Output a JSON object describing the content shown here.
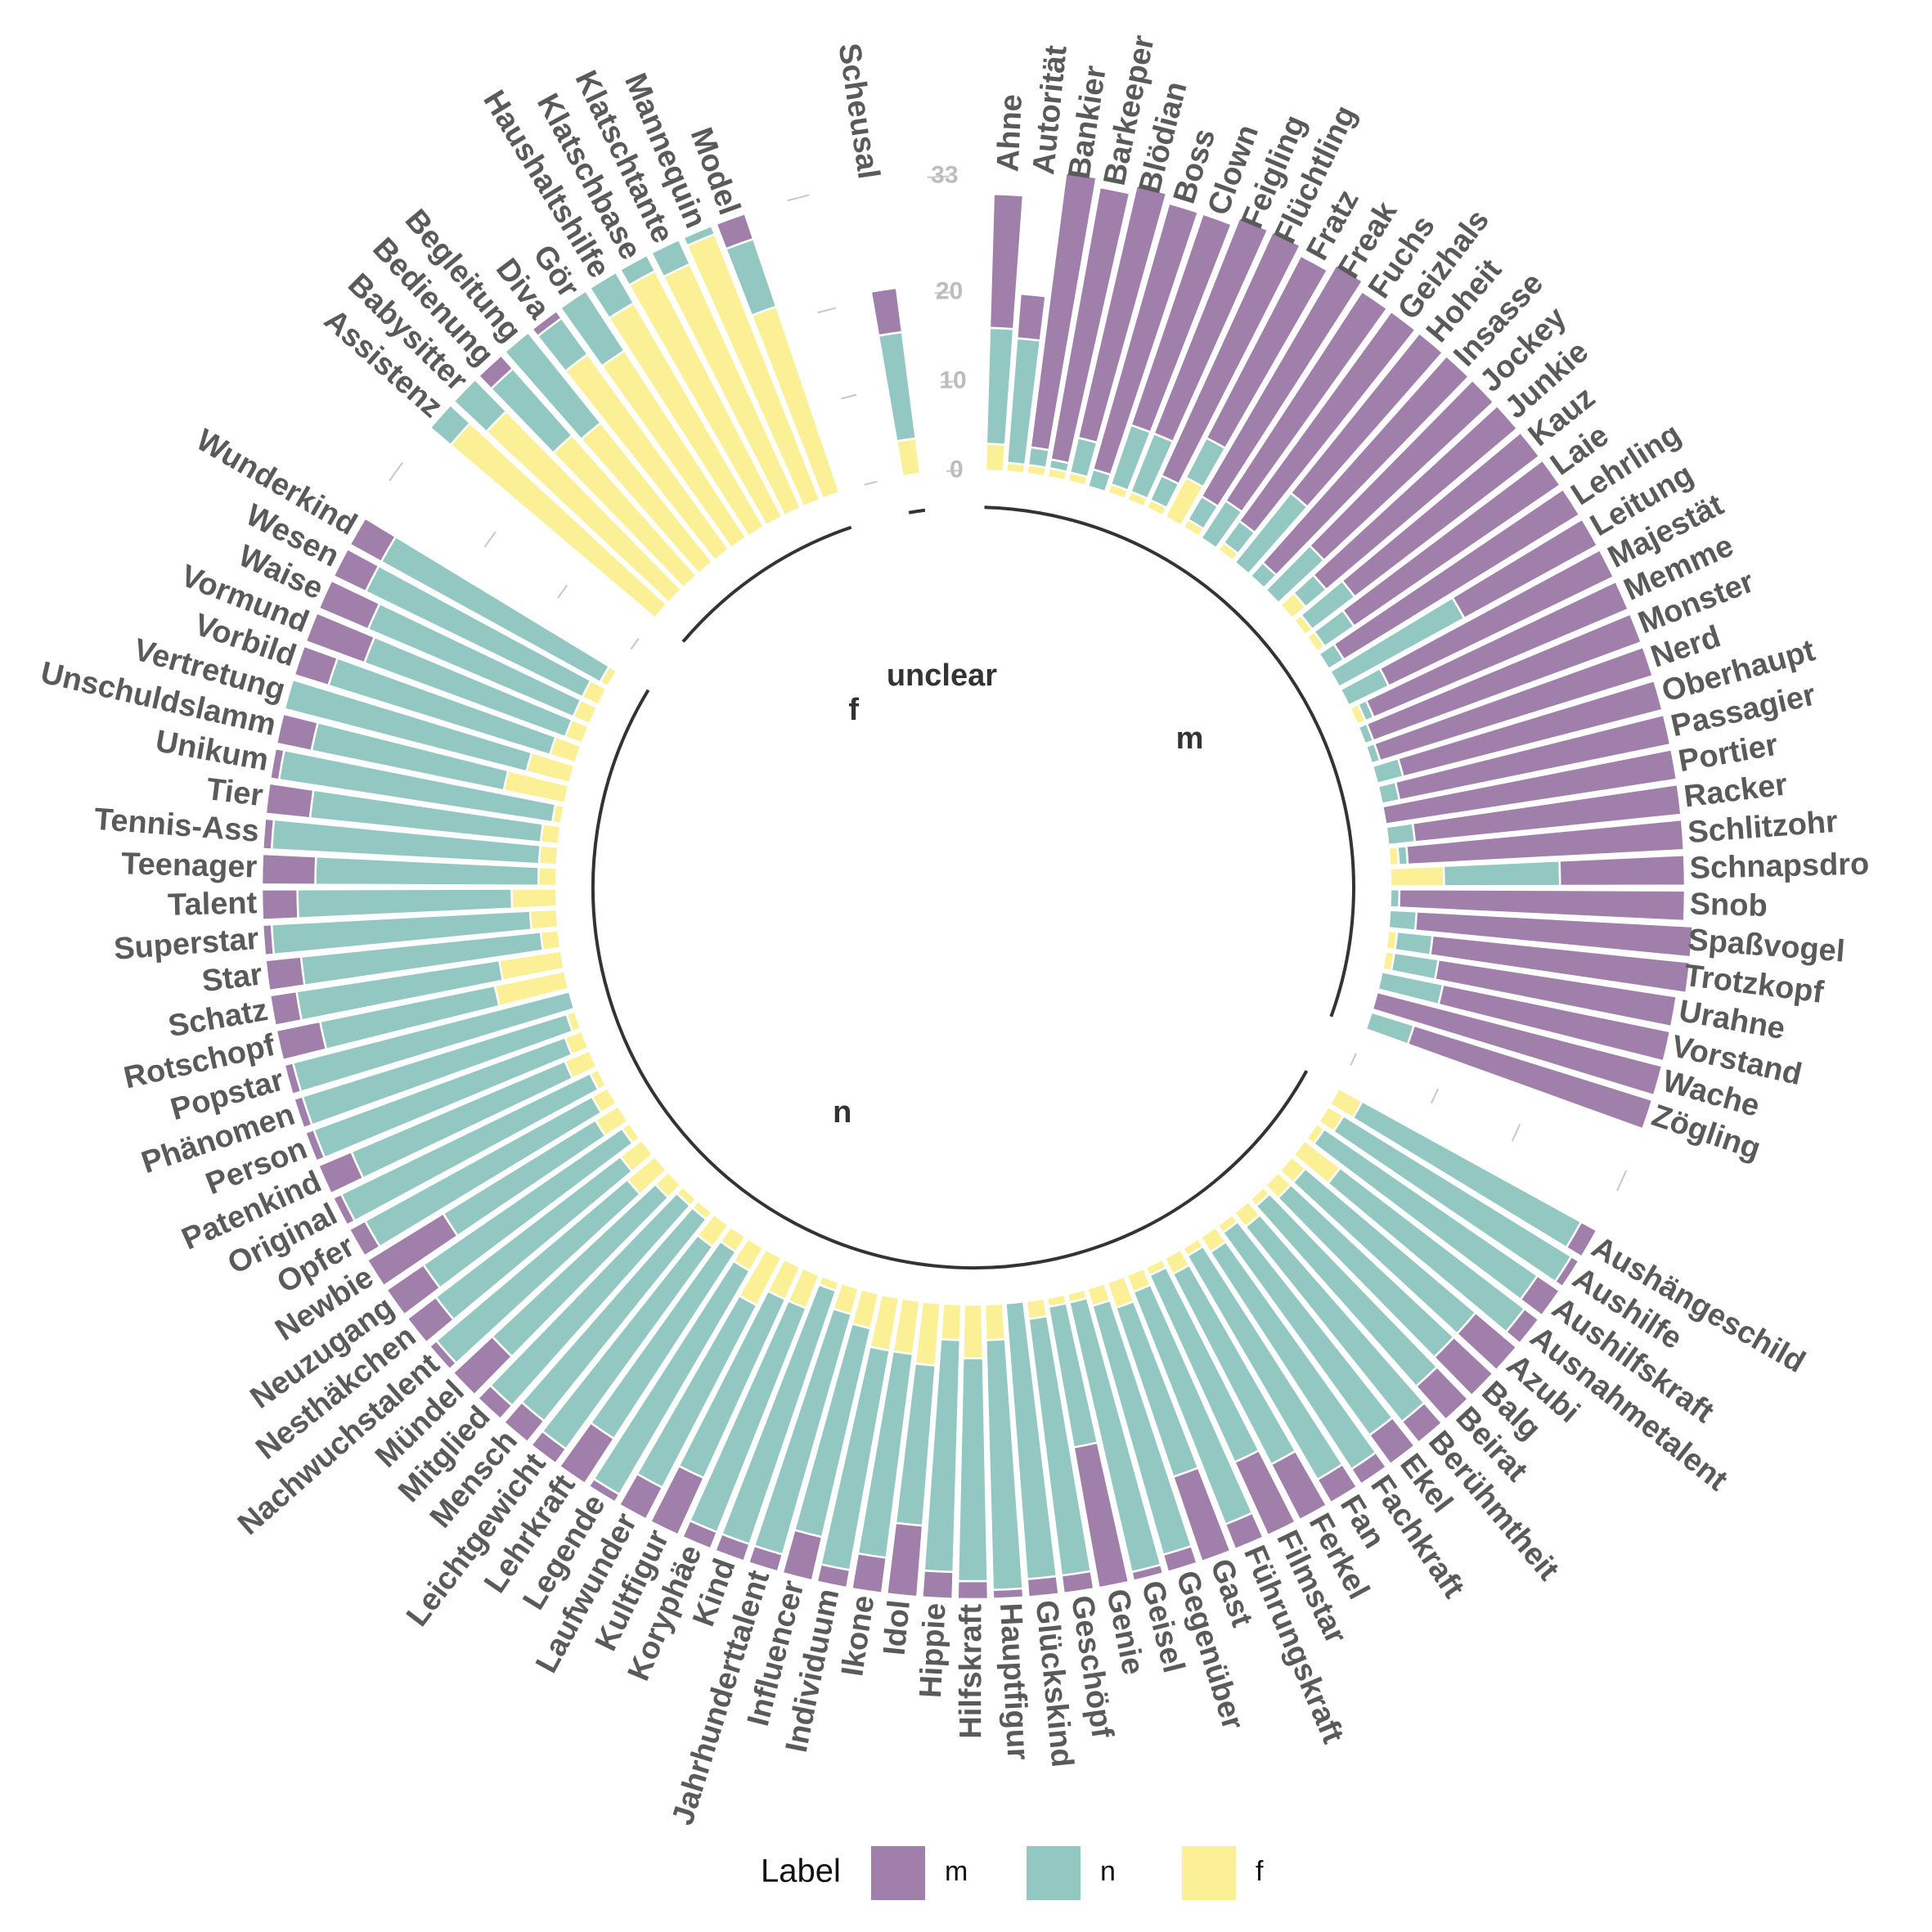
{
  "chart_data": {
    "type": "bar",
    "polar": true,
    "stacked": true,
    "colors": {
      "m": "#a07fab",
      "n": "#93c7c2",
      "f": "#fbf096"
    },
    "axis_ticks": [
      0,
      10,
      20,
      33
    ],
    "ylim": [
      0,
      33
    ],
    "legend": {
      "title": "Label",
      "position": "bottom",
      "keys": [
        "m",
        "n",
        "f"
      ]
    },
    "groups": [
      {
        "name": "m",
        "words": [
          [
            "Ahne",
            15,
            13,
            3
          ],
          [
            "Autorität",
            5,
            14,
            1
          ],
          [
            "Bankier",
            31,
            2,
            1
          ],
          [
            "Barkeeper",
            31,
            1,
            1
          ],
          [
            "Blödian",
            29,
            4,
            1
          ],
          [
            "Boss",
            31,
            2,
            0
          ],
          [
            "Clown",
            25,
            7,
            1
          ],
          [
            "Feigling",
            26,
            7,
            1
          ],
          [
            "Flüchtling",
            30,
            3,
            1
          ],
          [
            "Fratz",
            23,
            5,
            5
          ],
          [
            "Freak",
            30,
            3,
            1
          ],
          [
            "Fuchs",
            28,
            5,
            0
          ],
          [
            "Geizhals",
            29,
            3,
            1
          ],
          [
            "Hoheit",
            23,
            10,
            0
          ],
          [
            "Insasse",
            31,
            2,
            0
          ],
          [
            "Jockey",
            26,
            7,
            0
          ],
          [
            "Junkie",
            28,
            3,
            2
          ],
          [
            "Kauz",
            26,
            6,
            1
          ],
          [
            "Laie",
            28,
            4,
            1
          ],
          [
            "Lehrling",
            31,
            2,
            0
          ],
          [
            "Leitung",
            17,
            16,
            0
          ],
          [
            "Majestät",
            28,
            5,
            0
          ],
          [
            "Memme",
            31,
            1,
            1
          ],
          [
            "Monster",
            32,
            1,
            0
          ],
          [
            "Nerd",
            32,
            1,
            0
          ],
          [
            "Oberhaupt",
            30,
            3,
            0
          ],
          [
            "Passagier",
            31,
            2,
            0
          ],
          [
            "Portier",
            33,
            0,
            0
          ],
          [
            "Racker",
            30,
            3,
            0
          ],
          [
            "Schlitzohr",
            31,
            1,
            1
          ],
          [
            "Schnapsdro",
            14,
            13,
            6
          ],
          [
            "Snob",
            32,
            1,
            0
          ],
          [
            "Spaßvogel",
            31,
            3,
            0
          ],
          [
            "Trotzkopf",
            29,
            4,
            1
          ],
          [
            "Urahne",
            27,
            5,
            1
          ],
          [
            "Vorstand",
            26,
            7,
            0
          ],
          [
            "Wache",
            33,
            0,
            0
          ],
          [
            "Zögling",
            28,
            5,
            0
          ]
        ]
      },
      {
        "name": "n",
        "words": [
          [
            "Aushängeschild",
            2,
            28,
            3
          ],
          [
            "Aushilfe",
            1,
            30,
            2
          ],
          [
            "Aushilfskraft",
            3,
            29,
            1
          ],
          [
            "Ausnahmetalent",
            2,
            26,
            5
          ],
          [
            "Azubi",
            6,
            25,
            2
          ],
          [
            "Balg",
            6,
            25,
            2
          ],
          [
            "Beirat",
            5,
            27,
            1
          ],
          [
            "Berühmtheit",
            3,
            28,
            2
          ],
          [
            "Ekel",
            4,
            28,
            1
          ],
          [
            "Fachkraft",
            2,
            29,
            2
          ],
          [
            "Fan",
            3,
            29,
            1
          ],
          [
            "Ferkel",
            7,
            24,
            2
          ],
          [
            "Filmstar",
            9,
            23,
            1
          ],
          [
            "Führungskraft",
            3,
            28,
            2
          ],
          [
            "Gast",
            10,
            20,
            3
          ],
          [
            "Gegenüber",
            2,
            29,
            2
          ],
          [
            "Geisel",
            1,
            31,
            1
          ],
          [
            "Genie",
            16,
            16,
            1
          ],
          [
            "Geschöpf",
            2,
            29,
            2
          ],
          [
            "Glückskind",
            2,
            31,
            0
          ],
          [
            "Hauptfigur",
            1,
            28,
            4
          ],
          [
            "Hilfskraft",
            2,
            25,
            6
          ],
          [
            "Hippie",
            3,
            26,
            4
          ],
          [
            "Idol",
            8,
            18,
            7
          ],
          [
            "Ikone",
            4,
            23,
            6
          ],
          [
            "Individuum",
            2,
            25,
            6
          ],
          [
            "Influencer",
            5,
            24,
            4
          ],
          [
            "Jahrhunderttalent",
            2,
            28,
            3
          ],
          [
            "Kind",
            2,
            30,
            1
          ],
          [
            "Koryphäe",
            2,
            27,
            4
          ],
          [
            "Kultfigur",
            7,
            22,
            4
          ],
          [
            "Laufwunder",
            4,
            23,
            6
          ],
          [
            "Legende",
            1,
            29,
            3
          ],
          [
            "Lehrkraft",
            6,
            25,
            2
          ],
          [
            "Leichtgewicht",
            2,
            28,
            3
          ],
          [
            "Mensch",
            3,
            29,
            1
          ],
          [
            "Mitglied",
            2,
            30,
            1
          ],
          [
            "Mündel",
            6,
            25,
            2
          ],
          [
            "Nachwuchstalent",
            1,
            28,
            4
          ],
          [
            "Nesthäkchen",
            4,
            26,
            3
          ],
          [
            "Neuzugang",
            5,
            27,
            1
          ],
          [
            "Newbie",
            10,
            20,
            3
          ],
          [
            "Opfer",
            2,
            29,
            2
          ],
          [
            "Original",
            1,
            31,
            1
          ],
          [
            "Patenkind",
            4,
            26,
            3
          ],
          [
            "Person",
            1,
            30,
            2
          ],
          [
            "Phänomen",
            1,
            31,
            1
          ],
          [
            "Popstar",
            1,
            32,
            0
          ],
          [
            "Rotschopf",
            5,
            20,
            8
          ],
          [
            "Schatz",
            3,
            23,
            7
          ],
          [
            "Star",
            4,
            27,
            2
          ],
          [
            "Superstar",
            1,
            29,
            3
          ],
          [
            "Talent",
            4,
            24,
            5
          ],
          [
            "Teenager",
            6,
            25,
            2
          ],
          [
            "Tennis-Ass",
            1,
            30,
            2
          ],
          [
            "Tier",
            5,
            26,
            2
          ],
          [
            "Unikum",
            1,
            31,
            1
          ],
          [
            "Unschuldslamm",
            4,
            22,
            7
          ],
          [
            "Vertretung",
            0,
            28,
            5
          ],
          [
            "Vorbild",
            4,
            26,
            3
          ],
          [
            "Vormund",
            7,
            24,
            2
          ],
          [
            "Waise",
            6,
            25,
            2
          ],
          [
            "Wesen",
            4,
            27,
            2
          ],
          [
            "Wunderkind",
            4,
            28,
            1
          ]
        ]
      },
      {
        "name": "f",
        "words": [
          [
            "Assistenz",
            0,
            3,
            30
          ],
          [
            "Babysitter",
            0,
            5,
            28
          ],
          [
            "Bedienung",
            2,
            10,
            21
          ],
          [
            "Begleitung",
            0,
            13,
            20
          ],
          [
            "Diva",
            1,
            5,
            27
          ],
          [
            "Gör",
            0,
            8,
            25
          ],
          [
            "Haushaltshilfe",
            0,
            4,
            29
          ],
          [
            "Klatschbase",
            0,
            2,
            31
          ],
          [
            "Klatschtante",
            0,
            3,
            30
          ],
          [
            "Mannequin",
            0,
            1,
            32
          ],
          [
            "Model",
            3,
            8,
            22
          ]
        ]
      },
      {
        "name": "unclear",
        "words": [
          [
            "Scheusal",
            5,
            12,
            4
          ]
        ]
      }
    ]
  }
}
